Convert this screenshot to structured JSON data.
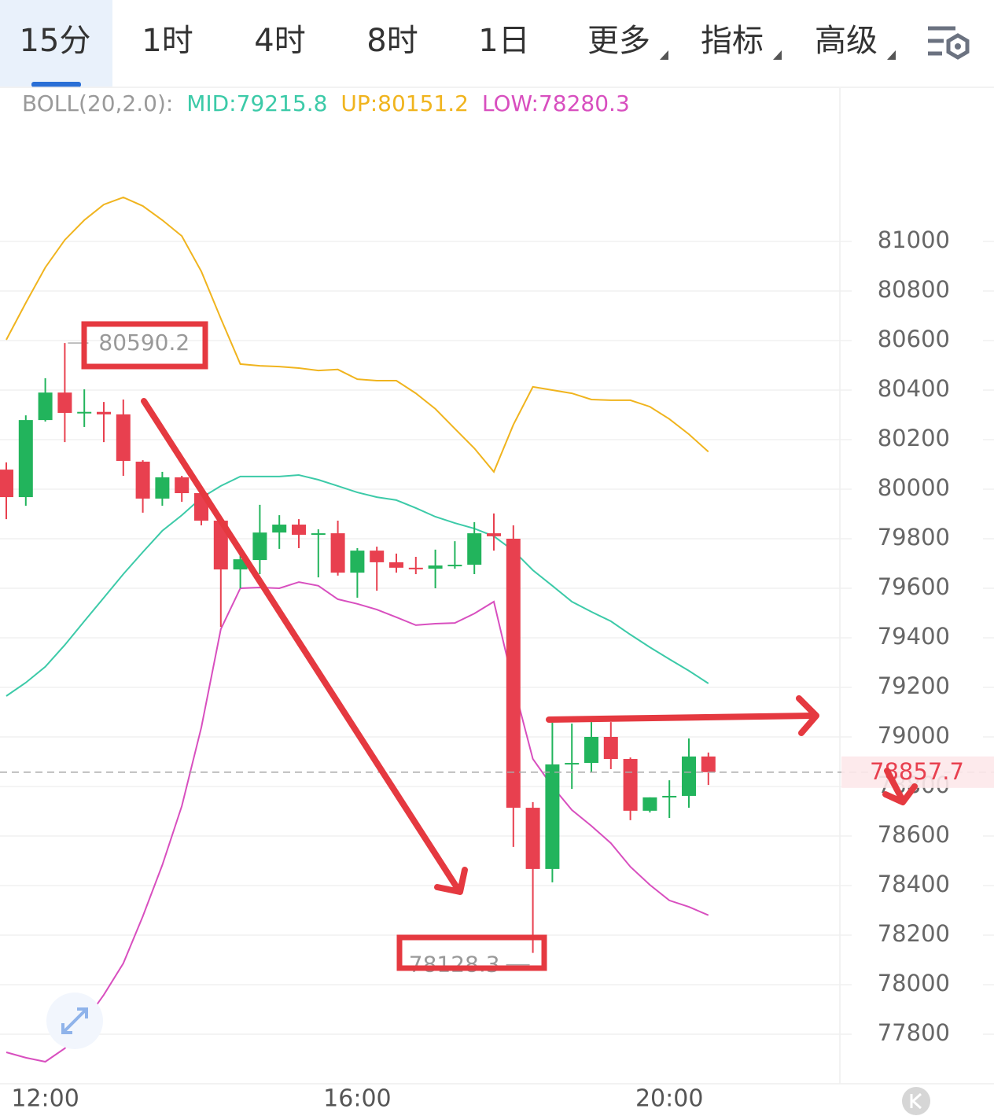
{
  "tabs": [
    "15分",
    "1时",
    "4时",
    "8时",
    "1日",
    "更多",
    "指标",
    "高级"
  ],
  "chart_data": {
    "type": "candlestick",
    "indicator": "BOLL(20,2.0):",
    "categories": [
      null,
      null,
      "12:00",
      null,
      null,
      null,
      null,
      null,
      null,
      null,
      null,
      null,
      null,
      null,
      null,
      null,
      null,
      null,
      "16:00",
      null,
      null,
      null,
      null,
      null,
      null,
      null,
      null,
      null,
      null,
      null,
      null,
      null,
      null,
      null,
      "20:00",
      null,
      null
    ],
    "open": [
      80079,
      79968,
      80279,
      80390,
      80308,
      80312,
      80302,
      80111,
      79962,
      80048,
      79984,
      79873,
      79676,
      79714,
      79825,
      79857,
      79816,
      79822,
      79663,
      79752,
      79705,
      79683,
      79679,
      79692,
      79695,
      79822,
      79800,
      78714,
      78467,
      78889,
      78895,
      79000,
      78911,
      78702,
      78756,
      78762,
      78921
    ],
    "high": [
      80108,
      80298,
      80448,
      80590.2,
      80403,
      80352,
      80362,
      80117,
      80070,
      80054,
      80000,
      79879,
      79752,
      79937,
      79895,
      79879,
      79838,
      79873,
      79762,
      79768,
      79740,
      79727,
      79756,
      79790,
      79867,
      79902,
      79854,
      78737,
      79057,
      79054,
      79060,
      79060,
      78917,
      78756,
      78825,
      78994,
      78937
    ],
    "low": [
      79879,
      79933,
      80273,
      80190,
      80251,
      80190,
      80054,
      79905,
      79933,
      79949,
      79854,
      79444,
      79600,
      79657,
      79759,
      79762,
      79644,
      79651,
      79562,
      79590,
      79663,
      79657,
      79600,
      79679,
      79657,
      79752,
      78556,
      78128.3,
      78413,
      78790,
      78857,
      78870,
      78664,
      78695,
      78673,
      78714,
      78806
    ],
    "close": [
      79968,
      80279,
      80390,
      80308,
      80312,
      80302,
      80114,
      79962,
      80048,
      79984,
      79873,
      79676,
      79717,
      79825,
      79857,
      79816,
      79822,
      79663,
      79752,
      79705,
      79683,
      79679,
      79692,
      79695,
      79822,
      79810,
      78714,
      78467,
      78889,
      78895,
      79000,
      78911,
      78702,
      78756,
      78762,
      78921,
      78857.7
    ],
    "up_color": "#22b45c",
    "down_color": "#e8404f",
    "series": [
      {
        "name": "MID:",
        "color": "#3ccaa8",
        "values": [
          79165,
          79219,
          79283,
          79371,
          79467,
          79562,
          79657,
          79746,
          79832,
          79895,
          79965,
          80013,
          80051,
          80051,
          80051,
          80057,
          80038,
          80013,
          79987,
          79968,
          79956,
          79924,
          79889,
          79863,
          79841,
          79810,
          79752,
          79673,
          79610,
          79546,
          79505,
          79467,
          79413,
          79362,
          79314,
          79267,
          79215.8
        ]
      },
      {
        "name": "UP:",
        "color": "#f0b41e",
        "values": [
          80603,
          80752,
          80895,
          81006,
          81086,
          81149,
          81178,
          81143,
          81086,
          81022,
          80879,
          80689,
          80505,
          80498,
          80495,
          80489,
          80479,
          80483,
          80444,
          80438,
          80438,
          80387,
          80324,
          80244,
          80165,
          80070,
          80260,
          80413,
          80400,
          80387,
          80362,
          80359,
          80359,
          80333,
          80283,
          80222,
          80151.2
        ]
      },
      {
        "name": "LOW:",
        "color": "#d84fbf",
        "values": [
          77727,
          77705,
          77689,
          77743,
          77848,
          77959,
          78086,
          78276,
          78483,
          78721,
          79038,
          79435,
          79600,
          79603,
          79600,
          79625,
          79610,
          79556,
          79537,
          79514,
          79483,
          79451,
          79457,
          79460,
          79498,
          79546,
          79213,
          78911,
          78800,
          78705,
          78641,
          78571,
          78476,
          78403,
          78340,
          78314,
          78280.3
        ]
      }
    ],
    "ylim": [
      77600,
      81619
    ],
    "yticks": [
      77800,
      78000,
      78200,
      78400,
      78600,
      78800,
      79000,
      79200,
      79400,
      79600,
      79800,
      80000,
      80200,
      80400,
      80600,
      80800,
      81000
    ],
    "grid": true
  }
}
